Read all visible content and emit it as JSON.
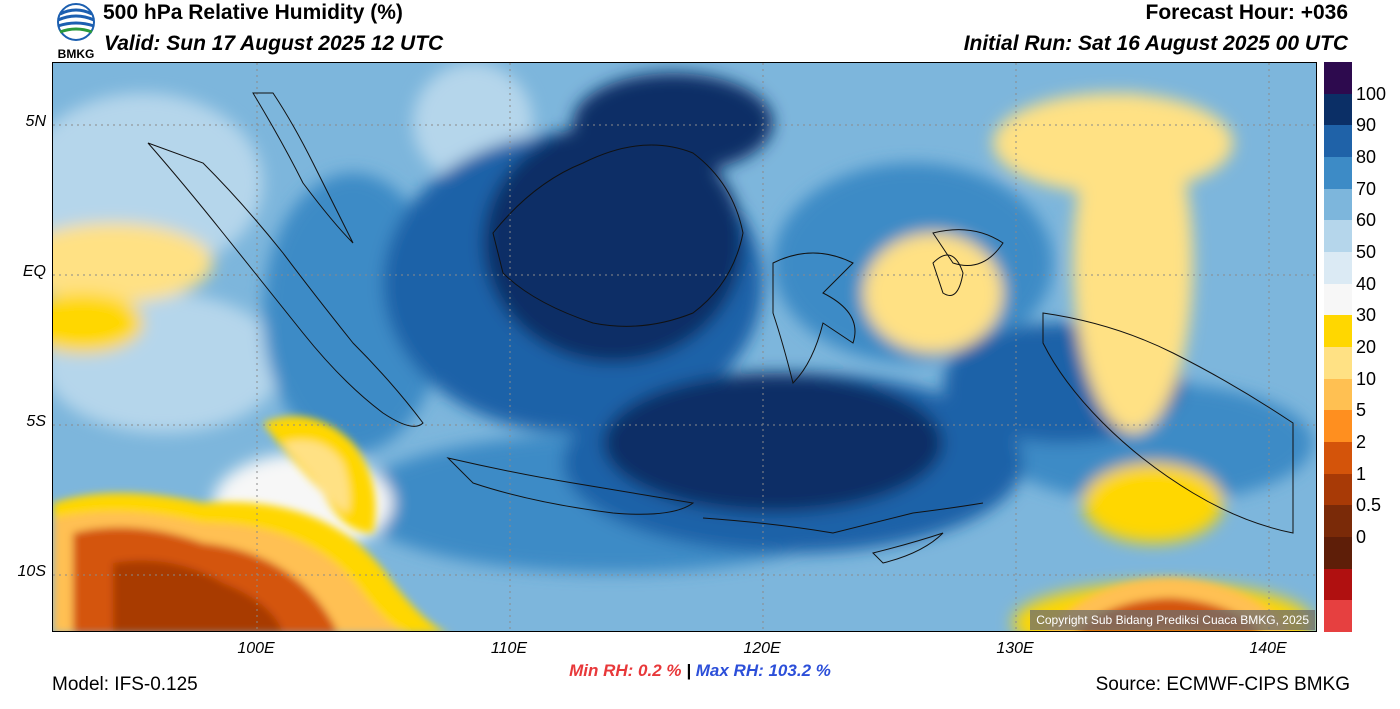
{
  "header": {
    "title": "500 hPa Relative Humidity (%)",
    "valid": "Valid: Sun 17 August 2025 12 UTC",
    "forecast_hour": "Forecast Hour: +036",
    "initial_run": "Initial Run: Sat 16 August 2025 00 UTC",
    "logo_text": "BMKG"
  },
  "map": {
    "lat_labels": [
      "5N",
      "EQ",
      "5S",
      "10S"
    ],
    "lon_labels": [
      "100E",
      "110E",
      "120E",
      "130E",
      "140E"
    ],
    "copyright": "Copyright Sub Bidang Prediksi Cuaca BMKG, 2025"
  },
  "colorbar": {
    "labels": [
      "100",
      "90",
      "80",
      "70",
      "60",
      "50",
      "40",
      "30",
      "20",
      "10",
      "5",
      "2",
      "1",
      "0.5",
      "0"
    ],
    "colors": [
      "#2d0a4e",
      "#0b2f66",
      "#1f62a8",
      "#3d8bc6",
      "#7db6dc",
      "#b5d6eb",
      "#dbeaf4",
      "#f7f7f7",
      "#ffd700",
      "#ffe184",
      "#ffc052",
      "#ff8f1f",
      "#d4540a",
      "#a83a06",
      "#7a2a08",
      "#5e1e08",
      "#b01010",
      "#e64040"
    ]
  },
  "stats": {
    "min_label": "Min RH:   0.2 %",
    "separator": "|",
    "max_label": "Max RH: 103.2 %",
    "min_color": "#e8383a",
    "max_color": "#2c4fd9"
  },
  "footer": {
    "model": "Model: IFS-0.125",
    "source": "Source: ECMWF-CIPS BMKG"
  }
}
